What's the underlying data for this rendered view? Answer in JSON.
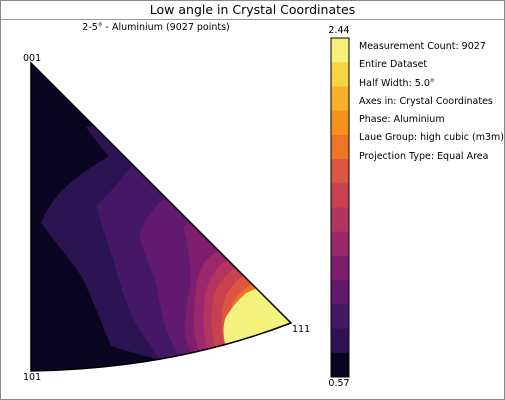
{
  "window": {
    "title": "Low angle in Crystal Coordinates"
  },
  "figure": {
    "subtitle": "2-5° - Aluminium (9027 points)",
    "poles": {
      "top": "001",
      "bottom": "101",
      "right": "111"
    }
  },
  "colorbar": {
    "max_label": "2.44",
    "min_label": "0.57",
    "colors": [
      "#f4f17c",
      "#f6d540",
      "#f8b22a",
      "#f6921c",
      "#ee7526",
      "#dd5641",
      "#c7414f",
      "#b43460",
      "#9b286b",
      "#7f1e6e",
      "#611a6d",
      "#451866",
      "#2c1352",
      "#0a0520"
    ]
  },
  "info": {
    "measurement_count": "Measurement Count: 9027",
    "dataset": "Entire Dataset",
    "half_width": "Half Width: 5.0°",
    "axes": "Axes in: Crystal Coordinates",
    "phase": "Phase: Aluminium",
    "laue_group": "Laue Group: high cubic (m3m)",
    "projection": "Projection Type: Equal Area"
  },
  "chart_data": {
    "type": "heatmap",
    "title": "Low angle in Crystal Coordinates",
    "subtitle": "2-5° - Aluminium (9027 points)",
    "projection": "Equal Area",
    "colorbar_range": [
      0.57,
      2.44
    ],
    "colorbar_levels": 14,
    "corners": [
      "001",
      "101",
      "111"
    ]
  }
}
